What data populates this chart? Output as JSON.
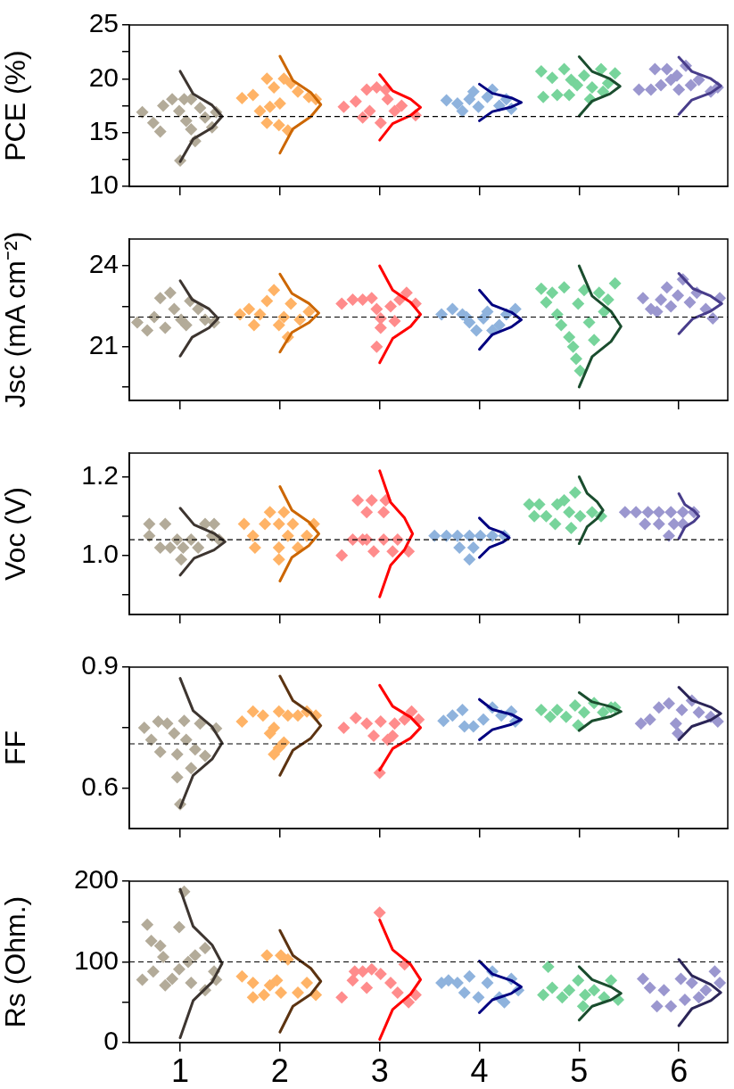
{
  "chart_data": [
    {
      "type": "scatter",
      "ylabel": "PCE (%)",
      "xlim": [
        0.49,
        6.49
      ],
      "xticks": [
        1,
        2,
        3,
        4,
        5,
        6
      ],
      "ylim": [
        10,
        25
      ],
      "yticks": [
        10,
        {
          "value": 12.5,
          "label": null
        },
        15,
        {
          "value": 17.5,
          "label": null
        },
        20,
        {
          "value": 22.5,
          "label": null
        },
        25
      ],
      "tick_labels": "y",
      "grid": false,
      "legend": false,
      "marker": "diamond",
      "ref_lines": [
        {
          "axis": "y",
          "value": 16.5,
          "color": "#000000",
          "line_style": "dashed"
        }
      ],
      "series": [
        {
          "color": "#b3ab99",
          "x": [
            0.62,
            0.73,
            0.83,
            0.8,
            0.92,
            0.99,
            1.04,
            1.06,
            1.11,
            1.15,
            1.2,
            1.25,
            1.32,
            1.36,
            1.0,
            1.11
          ],
          "values": [
            16.9,
            15.9,
            17.5,
            15.1,
            18.1,
            17.0,
            18.1,
            16.1,
            15.3,
            14.2,
            17.3,
            16.4,
            15.5,
            16.9,
            12.4,
            18.1
          ]
        },
        {
          "color": "#ffb366",
          "x": [
            1.62,
            1.73,
            1.87,
            1.94,
            2.04,
            2.11,
            1.9,
            2.0,
            1.87,
            1.99,
            2.08,
            2.18,
            2.29,
            2.36,
            1.8
          ],
          "values": [
            18.2,
            18.5,
            20.0,
            19.2,
            20.0,
            19.6,
            17.4,
            17.7,
            15.9,
            15.7,
            15.2,
            18.8,
            18.3,
            18.1,
            17.0
          ]
        },
        {
          "color": "#ff8c8c",
          "x": [
            2.64,
            2.76,
            2.87,
            2.97,
            2.9,
            2.83,
            3.01,
            3.08,
            3.15,
            3.22,
            3.36,
            3.06
          ],
          "values": [
            17.4,
            17.9,
            19.0,
            19.2,
            17.0,
            16.4,
            15.9,
            18.1,
            17.0,
            17.5,
            16.6,
            19.0
          ]
        },
        {
          "color": "#8fb3dd",
          "x": [
            3.67,
            3.78,
            3.83,
            3.9,
            3.99,
            4.08,
            4.13,
            4.2,
            4.27,
            4.32,
            3.94
          ],
          "values": [
            18.0,
            17.7,
            17.0,
            18.1,
            17.4,
            18.3,
            19.0,
            17.5,
            18.1,
            17.2,
            18.8
          ]
        },
        {
          "color": "#77d49b",
          "x": [
            4.62,
            4.73,
            4.78,
            4.64,
            4.85,
            4.92,
            4.98,
            5.05,
            5.11,
            5.13,
            5.22,
            5.24,
            5.29,
            5.36,
            4.9
          ],
          "values": [
            20.7,
            20.1,
            18.5,
            18.3,
            20.9,
            19.9,
            19.4,
            20.3,
            18.1,
            19.2,
            20.9,
            18.8,
            19.6,
            20.5,
            18.5
          ]
        },
        {
          "color": "#9b97cf",
          "x": [
            5.6,
            5.72,
            5.82,
            5.76,
            5.88,
            5.92,
            5.98,
            6.07,
            6.12,
            6.2,
            6.32,
            6.39,
            6.0
          ],
          "values": [
            19.0,
            19.0,
            19.4,
            20.9,
            20.9,
            19.9,
            20.3,
            21.2,
            19.4,
            19.9,
            18.8,
            19.2,
            19.0
          ]
        },
        {
          "type": "line",
          "marker": "none",
          "color": "#3d3530",
          "x": [
            1,
            1.13,
            1.32,
            1.42,
            1.32,
            1.13,
            1
          ],
          "values": [
            20.7,
            18.6,
            17.55,
            16.5,
            15.45,
            14.4,
            12.3
          ]
        },
        {
          "type": "line",
          "marker": "none",
          "color": "#cc6600",
          "x": [
            2,
            2.13,
            2.31,
            2.41,
            2.31,
            2.13,
            2
          ],
          "values": [
            22.1,
            19.85,
            18.73,
            17.6,
            16.48,
            15.35,
            13.1
          ]
        },
        {
          "type": "line",
          "marker": "none",
          "color": "#ff0000",
          "x": [
            3,
            3.13,
            3.31,
            3.41,
            3.31,
            3.13,
            3
          ],
          "values": [
            20.4,
            18.88,
            18.11,
            17.35,
            16.59,
            15.83,
            14.3
          ]
        },
        {
          "type": "line",
          "marker": "none",
          "color": "#000080",
          "x": [
            4,
            4.13,
            4.32,
            4.42,
            4.32,
            4.13,
            4
          ],
          "values": [
            19.5,
            18.65,
            18.23,
            17.8,
            17.38,
            16.95,
            16.1
          ]
        },
        {
          "type": "line",
          "marker": "none",
          "color": "#1a4d2e",
          "x": [
            5,
            5.13,
            5.31,
            5.41,
            5.31,
            5.13,
            5
          ],
          "values": [
            22.05,
            20.68,
            19.99,
            19.3,
            18.61,
            17.93,
            16.55
          ]
        },
        {
          "type": "line",
          "marker": "none",
          "color": "#483d8b",
          "x": [
            6,
            6.13,
            6.32,
            6.42,
            6.32,
            6.13,
            6
          ],
          "values": [
            22,
            20.68,
            20.01,
            19.35,
            18.69,
            18.03,
            16.7
          ]
        }
      ]
    },
    {
      "type": "scatter",
      "ylabel": "Jsc (mA cm⁻²)",
      "xlim": [
        0.49,
        6.49
      ],
      "xticks": [
        1,
        2,
        3,
        4,
        5,
        6
      ],
      "ylim": [
        19,
        25
      ],
      "yticks": [
        {
          "value": 19.5,
          "label": null
        },
        21,
        {
          "value": 22.5,
          "label": null
        },
        24
      ],
      "tick_labels": "y",
      "grid": false,
      "legend": false,
      "marker": "diamond",
      "ref_lines": [
        {
          "axis": "y",
          "value": 22.1,
          "color": "#000000",
          "line_style": "dashed"
        }
      ],
      "series": [
        {
          "color": "#b3ab99",
          "x": [
            0.57,
            0.67,
            0.74,
            0.8,
            0.85,
            0.9,
            0.94,
            1.01,
            1.06,
            1.1,
            1.18,
            1.25,
            1.34
          ],
          "values": [
            21.9,
            21.6,
            22.1,
            22.8,
            21.7,
            23.0,
            22.4,
            22.0,
            21.8,
            22.7,
            22.4,
            22.0,
            21.9
          ]
        },
        {
          "color": "#ffb366",
          "x": [
            1.6,
            1.69,
            1.74,
            1.8,
            1.87,
            1.94,
            1.99,
            2.04,
            2.08,
            2.11,
            2.2,
            2.29
          ],
          "values": [
            22.2,
            22.4,
            21.8,
            22.2,
            22.7,
            23.1,
            21.8,
            22.1,
            21.35,
            22.6,
            22.0,
            22.3
          ]
        },
        {
          "color": "#ff8c8c",
          "x": [
            2.62,
            2.73,
            2.83,
            2.92,
            2.97,
            3.01,
            3.01,
            2.97,
            3.11,
            3.2,
            3.27,
            3.36,
            3.15
          ],
          "values": [
            22.6,
            22.75,
            22.75,
            22.8,
            22.4,
            22.05,
            21.7,
            21.0,
            22.5,
            22.75,
            23.0,
            22.6,
            21.95
          ]
        },
        {
          "color": "#8fb3dd",
          "x": [
            3.62,
            3.73,
            3.83,
            3.9,
            3.97,
            4.04,
            4.08,
            4.13,
            4.2,
            4.27,
            4.36,
            3.87
          ],
          "values": [
            22.2,
            22.4,
            22.2,
            21.9,
            21.6,
            22.05,
            22.3,
            21.6,
            21.8,
            22.2,
            22.4,
            22.1
          ]
        },
        {
          "color": "#77d49b",
          "x": [
            4.62,
            4.67,
            4.73,
            4.78,
            4.82,
            4.85,
            4.9,
            4.94,
            4.97,
            5.01,
            4.99,
            5.05,
            5.1,
            5.15,
            5.2,
            5.25,
            5.29,
            5.36
          ],
          "values": [
            23.15,
            22.65,
            23.0,
            22.2,
            21.8,
            23.2,
            21.35,
            21.0,
            20.55,
            20.1,
            22.6,
            23.1,
            21.9,
            21.25,
            23.0,
            22.3,
            22.75,
            23.35
          ]
        },
        {
          "color": "#9b97cf",
          "x": [
            5.64,
            5.72,
            5.82,
            5.88,
            5.92,
            5.99,
            6.04,
            6.11,
            6.18,
            6.27,
            6.34,
            6.41,
            5.78
          ],
          "values": [
            22.8,
            22.4,
            22.75,
            23.2,
            22.5,
            22.9,
            23.5,
            22.65,
            23.0,
            22.4,
            22.05,
            22.8,
            22.3
          ]
        },
        {
          "type": "line",
          "marker": "none",
          "color": "#3d3530",
          "x": [
            1,
            1.12,
            1.29,
            1.38,
            1.29,
            1.12,
            1
          ],
          "values": [
            23.45,
            22.75,
            22.4,
            22.05,
            21.7,
            21.35,
            20.65
          ]
        },
        {
          "type": "line",
          "marker": "none",
          "color": "#cc6600",
          "x": [
            2,
            2.12,
            2.29,
            2.39,
            2.29,
            2.12,
            2
          ],
          "values": [
            23.7,
            22.98,
            22.61,
            22.25,
            21.89,
            21.53,
            20.8
          ]
        },
        {
          "type": "line",
          "marker": "none",
          "color": "#ff0000",
          "x": [
            3,
            3.13,
            3.31,
            3.41,
            3.31,
            3.13,
            3
          ],
          "values": [
            24,
            23.1,
            22.65,
            22.2,
            21.75,
            21.3,
            20.4
          ]
        },
        {
          "type": "line",
          "marker": "none",
          "color": "#000080",
          "x": [
            4,
            4.13,
            4.32,
            4.42,
            4.32,
            4.13,
            4
          ],
          "values": [
            23.1,
            22.55,
            22.28,
            22,
            21.73,
            21.45,
            20.9
          ]
        },
        {
          "type": "line",
          "marker": "none",
          "color": "#1a4d2e",
          "x": [
            5,
            5.13,
            5.32,
            5.42,
            5.32,
            5.13,
            5
          ],
          "values": [
            24,
            22.88,
            22.31,
            21.75,
            21.19,
            20.63,
            19.5
          ]
        },
        {
          "type": "line",
          "marker": "none",
          "color": "#483d8b",
          "x": [
            6,
            6.14,
            6.32,
            6.43,
            6.32,
            6.14,
            6
          ],
          "values": [
            23.72,
            23.16,
            22.88,
            22.6,
            22.32,
            22.04,
            21.48
          ]
        }
      ]
    },
    {
      "type": "scatter",
      "ylabel": "Voc (V)",
      "xlim": [
        0.49,
        6.49
      ],
      "xticks": [
        1,
        2,
        3,
        4,
        5,
        6
      ],
      "ylim": [
        0.85,
        1.26
      ],
      "yticks": [
        {
          "value": 0.9,
          "label": null
        },
        {
          "value": 1,
          "label": "1.0"
        },
        {
          "value": 1.1,
          "label": null
        },
        1.2
      ],
      "tick_labels": "y",
      "grid": false,
      "legend": false,
      "marker": "diamond",
      "ref_lines": [
        {
          "axis": "y",
          "value": 1.04,
          "color": "#000000",
          "line_style": "dashed"
        }
      ],
      "series": [
        {
          "color": "#b3ab99",
          "x": [
            0.69,
            0.85,
            0.69,
            0.8,
            0.97,
            1.03,
            1.01,
            1.11,
            1.18,
            1.25,
            1.34,
            1.32,
            0.9,
            1.39
          ],
          "values": [
            1.08,
            1.08,
            1.05,
            1.02,
            1.04,
            1.02,
            0.99,
            1.04,
            1.02,
            1.08,
            1.08,
            1.05,
            1.02,
            1.04
          ]
        },
        {
          "color": "#ffb366",
          "x": [
            1.64,
            1.73,
            1.75,
            1.85,
            1.9,
            1.99,
            1.99,
            2.13,
            2.08,
            1.99,
            2.27,
            2.34,
            2.18,
            2.04
          ],
          "values": [
            1.08,
            1.05,
            1.02,
            1.08,
            1.11,
            1.02,
            1.08,
            1.08,
            1.05,
            0.99,
            1.05,
            1.08,
            1.02,
            1.11
          ]
        },
        {
          "color": "#ff8c8c",
          "x": [
            2.62,
            2.78,
            2.87,
            2.92,
            3.04,
            3.06,
            2.73,
            2.83,
            2.94,
            3.04,
            3.18,
            3.13,
            3.29,
            2.87
          ],
          "values": [
            1.0,
            1.14,
            1.11,
            1.14,
            1.11,
            1.14,
            1.04,
            1.04,
            1.01,
            1.04,
            1.04,
            1.01,
            1.01,
            1.04
          ]
        },
        {
          "color": "#8fb3dd",
          "x": [
            3.55,
            3.67,
            3.78,
            3.9,
            4.01,
            4.13,
            4.25,
            3.8,
            3.9,
            3.94
          ],
          "values": [
            1.05,
            1.05,
            1.05,
            1.05,
            1.05,
            1.05,
            1.05,
            1.02,
            0.99,
            1.02
          ]
        },
        {
          "color": "#77d49b",
          "x": [
            4.5,
            4.6,
            4.55,
            4.67,
            4.76,
            4.85,
            4.9,
            4.96,
            4.92,
            5.01,
            5.13,
            5.22,
            4.78
          ],
          "values": [
            1.13,
            1.13,
            1.1,
            1.1,
            1.08,
            1.14,
            1.11,
            1.16,
            1.07,
            1.1,
            1.11,
            1.1,
            1.13
          ]
        },
        {
          "color": "#9b97cf",
          "x": [
            5.46,
            5.57,
            5.69,
            5.8,
            5.92,
            6.04,
            6.15,
            5.66,
            5.8,
            5.95,
            5.9,
            6.04
          ],
          "values": [
            1.11,
            1.11,
            1.11,
            1.11,
            1.11,
            1.11,
            1.11,
            1.08,
            1.08,
            1.08,
            1.05,
            1.08
          ]
        },
        {
          "type": "line",
          "marker": "none",
          "color": "#3d3530",
          "x": [
            1,
            1.14,
            1.34,
            1.45,
            1.34,
            1.14,
            1
          ],
          "values": [
            1.12,
            1.078,
            1.056,
            1.035,
            1.014,
            0.993,
            0.95
          ]
        },
        {
          "type": "line",
          "marker": "none",
          "color": "#cc6600",
          "x": [
            2,
            2.12,
            2.29,
            2.39,
            2.29,
            2.12,
            2
          ],
          "values": [
            1.175,
            1.115,
            1.085,
            1.055,
            1.025,
            0.995,
            0.935
          ]
        },
        {
          "type": "line",
          "marker": "none",
          "color": "#ff0000",
          "x": [
            3,
            3.11,
            3.25,
            3.33,
            3.25,
            3.11,
            3
          ],
          "values": [
            1.215,
            1.135,
            1.095,
            1.055,
            1.015,
            0.975,
            0.895
          ]
        },
        {
          "type": "line",
          "marker": "none",
          "color": "#000080",
          "x": [
            4,
            4.1,
            4.23,
            4.3,
            4.23,
            4.1,
            4
          ],
          "values": [
            1.095,
            1.07,
            1.058,
            1.045,
            1.033,
            1.02,
            0.995
          ]
        },
        {
          "type": "line",
          "marker": "none",
          "color": "#1a4d2e",
          "x": [
            5,
            5.08,
            5.18,
            5.24,
            5.18,
            5.08,
            5
          ],
          "values": [
            1.2,
            1.158,
            1.136,
            1.115,
            1.094,
            1.073,
            1.03
          ]
        },
        {
          "type": "line",
          "marker": "none",
          "color": "#483d8b",
          "x": [
            6,
            6.06,
            6.15,
            6.2,
            6.15,
            6.06,
            6
          ],
          "values": [
            1.157,
            1.129,
            1.114,
            1.1,
            1.086,
            1.072,
            1.043
          ]
        }
      ]
    },
    {
      "type": "scatter",
      "ylabel": "FF",
      "xlim": [
        0.49,
        6.49
      ],
      "xticks": [
        1,
        2,
        3,
        4,
        5,
        6
      ],
      "ylim": [
        0.5,
        0.9
      ],
      "yticks": [
        0.6,
        {
          "value": 0.75,
          "label": null
        },
        0.9
      ],
      "tick_labels": "y",
      "grid": false,
      "legend": false,
      "marker": "diamond",
      "ref_lines": [
        {
          "axis": "y",
          "value": 0.71,
          "color": "#000000",
          "line_style": "dashed"
        }
      ],
      "series": [
        {
          "color": "#b3ab99",
          "x": [
            0.64,
            0.71,
            0.78,
            0.8,
            0.87,
            0.94,
            0.97,
            1.04,
            1.06,
            1.11,
            1.15,
            1.2,
            1.25,
            1.36,
            0.97,
            1.0
          ],
          "values": [
            0.75,
            0.72,
            0.765,
            0.69,
            0.76,
            0.736,
            0.684,
            0.767,
            0.72,
            0.65,
            0.696,
            0.76,
            0.68,
            0.748,
            0.627,
            0.56
          ]
        },
        {
          "color": "#ffb366",
          "x": [
            1.62,
            1.73,
            1.83,
            1.94,
            1.99,
            2.08,
            2.18,
            2.27,
            2.36,
            1.94,
            1.99,
            2.04,
            1.9
          ],
          "values": [
            0.765,
            0.79,
            0.78,
            0.75,
            0.79,
            0.78,
            0.78,
            0.79,
            0.78,
            0.684,
            0.7,
            0.713,
            0.736
          ]
        },
        {
          "color": "#ff8c8c",
          "x": [
            2.64,
            2.76,
            2.87,
            2.94,
            3.01,
            3.08,
            3.15,
            3.25,
            3.32,
            3.39,
            3.0,
            3.13
          ],
          "values": [
            0.75,
            0.774,
            0.76,
            0.73,
            0.765,
            0.72,
            0.76,
            0.77,
            0.79,
            0.77,
            0.638,
            0.73
          ]
        },
        {
          "color": "#8fb3dd",
          "x": [
            3.64,
            3.73,
            3.83,
            3.85,
            3.94,
            4.04,
            4.13,
            4.22,
            4.32,
            4.36
          ],
          "values": [
            0.767,
            0.78,
            0.794,
            0.753,
            0.753,
            0.77,
            0.8,
            0.78,
            0.79,
            0.765
          ]
        },
        {
          "color": "#77d49b",
          "x": [
            4.62,
            4.71,
            4.78,
            4.87,
            4.96,
            4.99,
            5.05,
            5.15,
            5.24,
            5.32,
            5.36
          ],
          "values": [
            0.794,
            0.777,
            0.794,
            0.777,
            0.805,
            0.756,
            0.788,
            0.811,
            0.788,
            0.8,
            0.8
          ]
        },
        {
          "color": "#9b97cf",
          "x": [
            5.62,
            5.71,
            5.8,
            5.9,
            5.97,
            6.03,
            6.13,
            6.2,
            6.32,
            6.39,
            5.99
          ],
          "values": [
            0.76,
            0.77,
            0.8,
            0.81,
            0.76,
            0.794,
            0.817,
            0.788,
            0.777,
            0.765,
            0.736
          ]
        },
        {
          "type": "line",
          "marker": "none",
          "color": "#3d3530",
          "x": [
            1,
            1.13,
            1.32,
            1.42,
            1.32,
            1.13,
            1
          ],
          "values": [
            0.872,
            0.792,
            0.752,
            0.712,
            0.672,
            0.632,
            0.552
          ]
        },
        {
          "type": "line",
          "marker": "none",
          "color": "#5c3311",
          "x": [
            2,
            2.13,
            2.31,
            2.41,
            2.31,
            2.13,
            2
          ],
          "values": [
            0.878,
            0.817,
            0.786,
            0.755,
            0.724,
            0.694,
            0.632
          ]
        },
        {
          "type": "line",
          "marker": "none",
          "color": "#ff0000",
          "x": [
            3,
            3.13,
            3.31,
            3.41,
            3.31,
            3.13,
            3
          ],
          "values": [
            0.855,
            0.803,
            0.776,
            0.75,
            0.724,
            0.698,
            0.645
          ]
        },
        {
          "type": "line",
          "marker": "none",
          "color": "#000080",
          "x": [
            4,
            4.13,
            4.32,
            4.42,
            4.32,
            4.13,
            4
          ],
          "values": [
            0.82,
            0.795,
            0.783,
            0.77,
            0.758,
            0.745,
            0.72
          ]
        },
        {
          "type": "line",
          "marker": "none",
          "color": "#1a4d2e",
          "x": [
            5,
            5.13,
            5.32,
            5.42,
            5.32,
            5.13,
            5
          ],
          "values": [
            0.837,
            0.814,
            0.802,
            0.79,
            0.778,
            0.767,
            0.743
          ]
        },
        {
          "type": "line",
          "marker": "none",
          "color": "#2b2557",
          "x": [
            6,
            6.13,
            6.32,
            6.42,
            6.32,
            6.13,
            6
          ],
          "values": [
            0.85,
            0.818,
            0.801,
            0.785,
            0.769,
            0.753,
            0.72
          ]
        }
      ]
    },
    {
      "type": "scatter",
      "ylabel": "Rs (Ohm.)",
      "xlim": [
        0.49,
        6.49
      ],
      "xticks": [
        1,
        2,
        3,
        4,
        5,
        6
      ],
      "ylim": [
        0,
        200
      ],
      "yticks": [
        0,
        {
          "value": 50,
          "label": null
        },
        100,
        {
          "value": 150,
          "label": null
        },
        200
      ],
      "grid": false,
      "legend": false,
      "marker": "diamond",
      "ref_lines": [
        {
          "axis": "y",
          "value": 100,
          "color": "#000000",
          "line_style": "dashed"
        }
      ],
      "series": [
        {
          "color": "#b3ab99",
          "x": [
            0.67,
            0.71,
            0.62,
            0.73,
            0.8,
            0.83,
            0.85,
            0.92,
            0.99,
            0.99,
            1.04,
            1.08,
            1.15,
            1.11,
            1.25,
            1.25,
            1.34,
            1.36
          ],
          "values": [
            146,
            126,
            78,
            88,
            120,
            106,
            71,
            79,
            91,
            143,
            187,
            100,
            108,
            74,
            117,
            65,
            88,
            78
          ]
        },
        {
          "color": "#ffb366",
          "x": [
            1.62,
            1.73,
            1.73,
            1.87,
            1.9,
            1.97,
            2.01,
            2.01,
            2.08,
            2.18,
            2.27,
            2.36,
            1.84
          ],
          "values": [
            82,
            56,
            74,
            108,
            71,
            77,
            62,
            108,
            103,
            62,
            74,
            59,
            59
          ]
        },
        {
          "color": "#ff8c8c",
          "x": [
            2.62,
            2.73,
            2.83,
            2.87,
            2.92,
            3.0,
            3.01,
            3.11,
            3.18,
            3.25,
            3.29,
            3.36,
            2.75
          ],
          "values": [
            56,
            77,
            88,
            68,
            91,
            161,
            85,
            74,
            62,
            97,
            50,
            59,
            88
          ]
        },
        {
          "color": "#8fb3dd",
          "x": [
            3.62,
            3.69,
            3.78,
            3.85,
            3.9,
            3.99,
            4.08,
            4.13,
            4.2,
            4.25,
            4.32,
            4.39
          ],
          "values": [
            74,
            77,
            74,
            62,
            82,
            56,
            74,
            88,
            56,
            50,
            79,
            65
          ]
        },
        {
          "color": "#77d49b",
          "x": [
            4.69,
            4.64,
            4.73,
            4.83,
            4.9,
            4.99,
            5.04,
            5.06,
            5.15,
            5.25,
            5.32,
            5.39
          ],
          "values": [
            94,
            59,
            68,
            56,
            65,
            77,
            45,
            59,
            65,
            56,
            77,
            53
          ]
        },
        {
          "color": "#9b97cf",
          "x": [
            5.64,
            5.71,
            5.78,
            5.85,
            5.92,
            6.02,
            6.06,
            6.13,
            6.2,
            6.27,
            6.36,
            6.41
          ],
          "values": [
            79,
            68,
            45,
            65,
            45,
            79,
            53,
            74,
            56,
            65,
            88,
            74
          ]
        },
        {
          "type": "line",
          "marker": "none",
          "color": "#3d3530",
          "x": [
            1,
            1.13,
            1.32,
            1.42,
            1.32,
            1.13,
            1
          ],
          "values": [
            190,
            144,
            121,
            98,
            75,
            52,
            6
          ]
        },
        {
          "type": "line",
          "marker": "none",
          "color": "#5c3311",
          "x": [
            2,
            2.13,
            2.31,
            2.41,
            2.31,
            2.13,
            2
          ],
          "values": [
            139,
            108,
            92,
            76,
            60,
            45,
            13
          ]
        },
        {
          "type": "line",
          "marker": "none",
          "color": "#ff0000",
          "x": [
            3,
            3.13,
            3.31,
            3.41,
            3.31,
            3.13,
            3
          ],
          "values": [
            152,
            115,
            97,
            78,
            60,
            41,
            4
          ]
        },
        {
          "type": "line",
          "marker": "none",
          "color": "#000080",
          "x": [
            4,
            4.13,
            4.32,
            4.42,
            4.32,
            4.13,
            4
          ],
          "values": [
            101,
            85,
            77,
            69,
            61,
            53,
            37
          ]
        },
        {
          "type": "line",
          "marker": "none",
          "color": "#1a4d2e",
          "x": [
            5,
            5.13,
            5.32,
            5.42,
            5.32,
            5.13,
            5
          ],
          "values": [
            94,
            78,
            69,
            61,
            53,
            45,
            28
          ]
        },
        {
          "type": "line",
          "marker": "none",
          "color": "#2b2557",
          "x": [
            6,
            6.13,
            6.32,
            6.42,
            6.32,
            6.13,
            6
          ],
          "values": [
            103,
            83,
            72,
            62,
            52,
            42,
            21
          ]
        }
      ]
    }
  ]
}
